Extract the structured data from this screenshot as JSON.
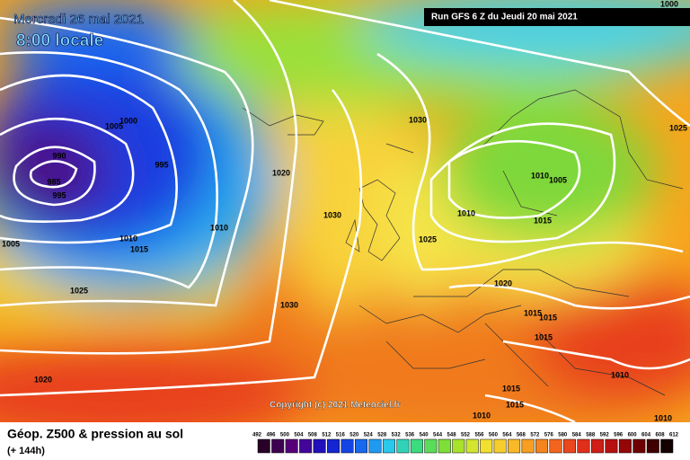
{
  "header": {
    "date": "Mercredi 26 mai 2021",
    "time": "8:00 locale",
    "run": "Run GFS 6 Z du Jeudi 20 mai 2021"
  },
  "copyright": "Copyright (c) 2021 Meteociel.fr",
  "footer": {
    "title": "Géop. Z500 & pression au sol",
    "lead": "(+ 144h)"
  },
  "legend": {
    "values": [
      492,
      496,
      500,
      504,
      508,
      512,
      516,
      520,
      524,
      528,
      532,
      536,
      540,
      544,
      548,
      552,
      556,
      560,
      564,
      568,
      572,
      576,
      580,
      584,
      588,
      592,
      596,
      600,
      604,
      608,
      612
    ]
  },
  "isobars": {
    "labels": [
      "990",
      "985",
      "995",
      "995",
      "1000",
      "1005",
      "1010",
      "1015",
      "1010",
      "1020",
      "1030",
      "1030",
      "1030",
      "1025",
      "1020",
      "1005",
      "1000",
      "1025",
      "1010",
      "1005",
      "1010",
      "1015",
      "1025",
      "1020",
      "1015",
      "1015",
      "1015",
      "1010",
      "1015",
      "1015",
      "1010",
      "1010"
    ]
  }
}
